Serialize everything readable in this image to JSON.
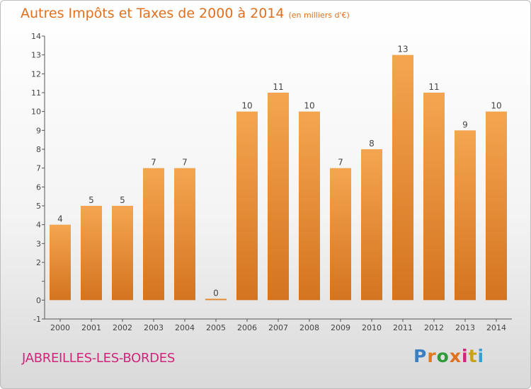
{
  "title": "Autres Impôts et Taxes de 2000 à 2014",
  "unit": "(en milliers d'€)",
  "commune": "JABREILLES-LES-BORDES",
  "logo": "Proxiti",
  "colors": {
    "title": "#e0701e",
    "commune": "#d1257b",
    "bar_top": "#f5a550",
    "bar_bottom": "#d4741f"
  },
  "chart_data": {
    "type": "bar",
    "title": "Autres Impôts et Taxes de 2000 à 2014",
    "subtitle": "(en milliers d'€)",
    "xlabel": "",
    "ylabel": "",
    "categories": [
      "2000",
      "2001",
      "2002",
      "2003",
      "2004",
      "2005",
      "2006",
      "2007",
      "2008",
      "2009",
      "2010",
      "2011",
      "2012",
      "2013",
      "2014"
    ],
    "values": [
      4,
      5,
      5,
      7,
      7,
      0,
      10,
      11,
      10,
      7,
      8,
      13,
      11,
      9,
      10
    ],
    "ylim": [
      -1,
      14
    ],
    "yticks": [
      "-1",
      "0",
      "",
      "2",
      "3",
      "4",
      "5",
      "6",
      "7",
      "8",
      "9",
      "10",
      "11",
      "12",
      "13",
      "14"
    ],
    "grid": false,
    "legend": "none"
  }
}
